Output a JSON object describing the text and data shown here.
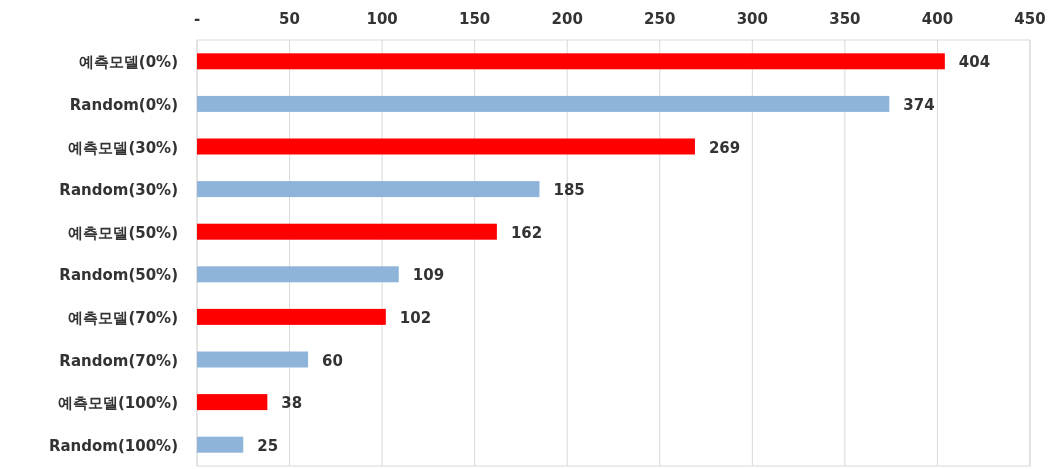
{
  "chart_data": {
    "type": "bar",
    "orientation": "horizontal",
    "categories": [
      "예측모델(0%)",
      "Random(0%)",
      "예측모델(30%)",
      "Random(30%)",
      "예측모델(50%)",
      "Random(50%)",
      "예측모델(70%)",
      "Random(70%)",
      "예측모델(100%)",
      "Random(100%)"
    ],
    "values": [
      404,
      374,
      269,
      185,
      162,
      109,
      102,
      60,
      38,
      25
    ],
    "colors": [
      "#ff0000",
      "#8fb4d9",
      "#ff0000",
      "#8fb4d9",
      "#ff0000",
      "#8fb4d9",
      "#ff0000",
      "#8fb4d9",
      "#ff0000",
      "#8fb4d9"
    ],
    "xlim": [
      0,
      450
    ],
    "xticks": [
      {
        "value": 0,
        "label": "-"
      },
      50,
      100,
      150,
      200,
      250,
      300,
      350,
      400,
      450
    ],
    "grid": "x",
    "data_labels": true
  }
}
